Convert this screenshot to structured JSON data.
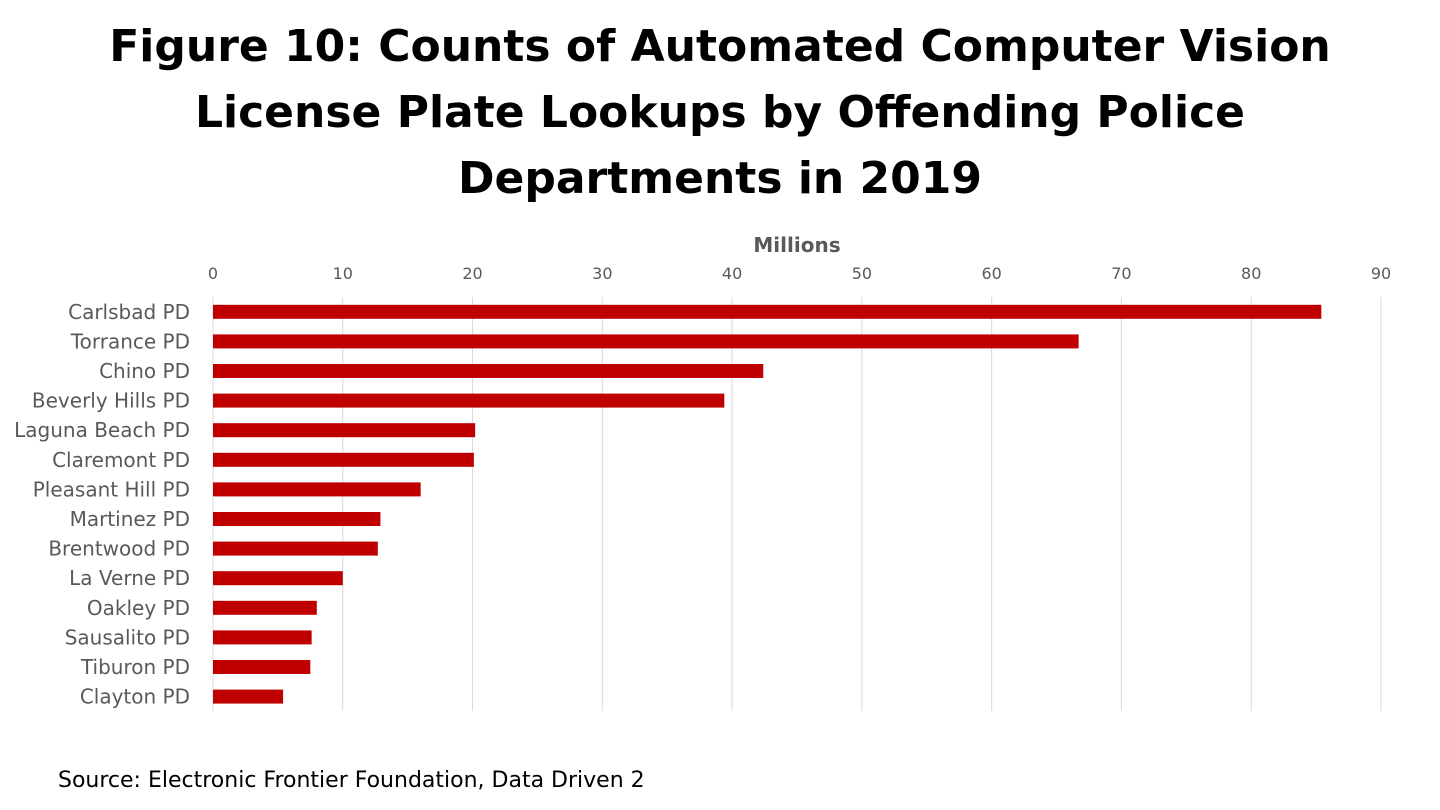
{
  "chart_data": {
    "type": "bar",
    "orientation": "horizontal",
    "title_lines": [
      "Figure 10: Counts of Automated Computer Vision",
      "License Plate Lookups by Offending Police",
      "Departments in 2019"
    ],
    "xlabel": "Millions",
    "ylabel": "",
    "xlim": [
      0,
      90
    ],
    "x_ticks": [
      0,
      10,
      20,
      30,
      40,
      50,
      60,
      70,
      80,
      90
    ],
    "x_axis_position": "top",
    "grid": true,
    "legend": "none",
    "categories": [
      "Carlsbad PD",
      "Torrance PD",
      "Chino PD",
      "Beverly Hills PD",
      "Laguna Beach PD",
      "Claremont PD",
      "Pleasant Hill PD",
      "Martinez PD",
      "Brentwood PD",
      "La Verne PD",
      "Oakley PD",
      "Sausalito PD",
      "Tiburon PD",
      "Clayton PD"
    ],
    "values": [
      85.4,
      66.7,
      42.4,
      39.4,
      20.2,
      20.1,
      16.0,
      12.9,
      12.7,
      10.0,
      8.0,
      7.6,
      7.5,
      5.4
    ],
    "bar_color": "#C00000",
    "grid_color": "#D9D9D9",
    "label_color": "#595959"
  },
  "source": "Source: Electronic Frontier Foundation, Data Driven 2"
}
